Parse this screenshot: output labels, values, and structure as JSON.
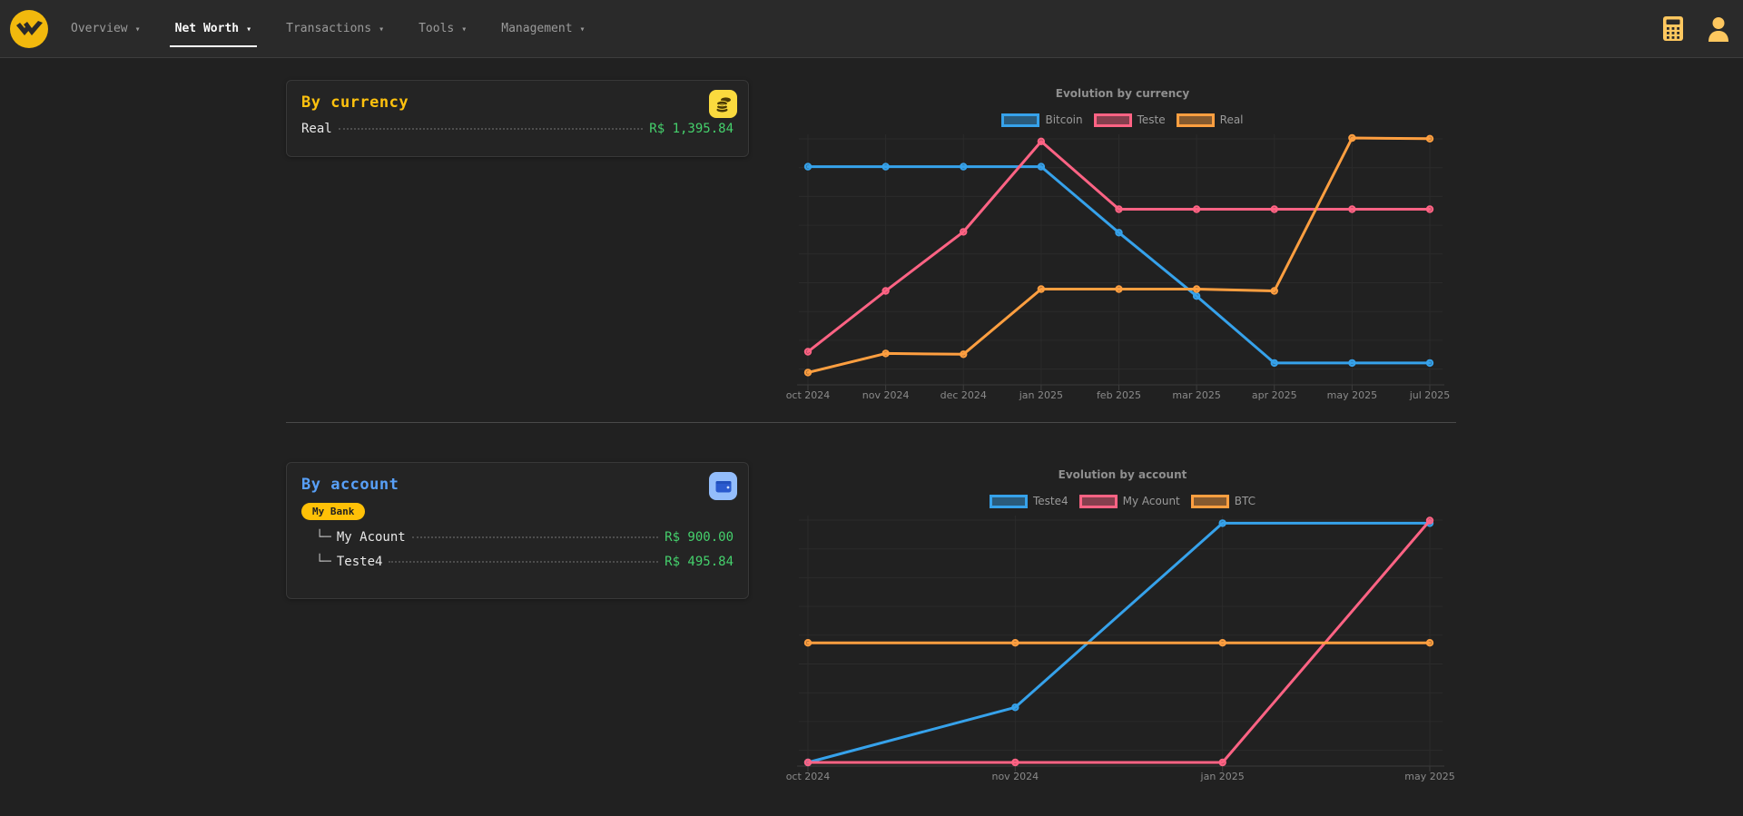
{
  "navbar": {
    "caret": "▾",
    "items": [
      {
        "label": "Overview",
        "active": false
      },
      {
        "label": "Net Worth",
        "active": true
      },
      {
        "label": "Transactions",
        "active": false
      },
      {
        "label": "Tools",
        "active": false
      },
      {
        "label": "Management",
        "active": false
      }
    ]
  },
  "colors": {
    "accent_yellow": "#f2b90d",
    "title_gold": "#ffc20e",
    "title_blue": "#58a0f8",
    "value_green": "#45d06c",
    "badge_yellow": "#ffc107",
    "nav_icon_amber": "#fdc75f",
    "series_blue": "#36A2EB",
    "series_pink": "#FF6384",
    "series_orange": "#FF9F40"
  },
  "cards": {
    "by_currency": {
      "title": "By currency",
      "icon": "coins-icon",
      "rows": [
        {
          "label": "Real",
          "value": "R$ 1,395.84"
        }
      ]
    },
    "by_account": {
      "title": "By account",
      "icon": "wallet-icon",
      "group_badge": "My Bank",
      "rows": [
        {
          "prefix": "└─",
          "label": "My Acount",
          "value": "R$ 900.00"
        },
        {
          "prefix": "└─",
          "label": "Teste4",
          "value": "R$ 495.84"
        }
      ]
    }
  },
  "chart_data": [
    {
      "type": "line",
      "title": "Evolution by currency",
      "categories": [
        "oct 2024",
        "nov 2024",
        "dec 2024",
        "jan 2025",
        "feb 2025",
        "mar 2025",
        "apr 2025",
        "may 2025",
        "jul 2025"
      ],
      "series": [
        {
          "name": "Bitcoin",
          "color": "#36A2EB",
          "values": [
            1235,
            1235,
            1235,
            1235,
            855,
            490,
            105,
            105,
            105
          ]
        },
        {
          "name": "Teste",
          "color": "#FF6384",
          "values": [
            170,
            520,
            860,
            1380,
            990,
            990,
            990,
            990,
            990
          ]
        },
        {
          "name": "Real",
          "color": "#FF9F40",
          "values": [
            50,
            160,
            155,
            530,
            530,
            530,
            520,
            1400,
            1395.84
          ]
        }
      ],
      "ylim": [
        0,
        1400
      ],
      "y_axis_labels": false,
      "grid": true,
      "legend_position": "top"
    },
    {
      "type": "line",
      "title": "Evolution by account",
      "categories": [
        "oct 2024",
        "nov 2024",
        "jan 2025",
        "may 2025"
      ],
      "series": [
        {
          "name": "Teste4",
          "color": "#36A2EB",
          "values": [
            0,
            205,
            890,
            890
          ]
        },
        {
          "name": "My Acount",
          "color": "#FF6384",
          "values": [
            0,
            0,
            0,
            900
          ]
        },
        {
          "name": "BTC",
          "color": "#FF9F40",
          "values": [
            445,
            445,
            445,
            445
          ]
        }
      ],
      "ylim": [
        0,
        905
      ],
      "y_axis_labels": false,
      "grid": true,
      "legend_position": "top"
    }
  ]
}
